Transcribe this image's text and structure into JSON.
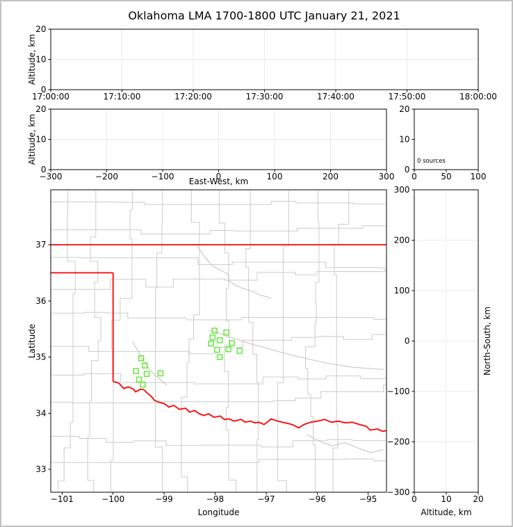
{
  "title": "Oklahoma LMA 1700-1800 UTC January 21, 2021",
  "colors": {
    "state_border": "#ff0000",
    "station_marker": "#65e83d",
    "county_line": "#cbcbcb",
    "river_line": "#c9c9c9",
    "gridline": "#ebebeb",
    "axis": "#000000"
  },
  "chart_data": {
    "type": "scatter",
    "title": "Oklahoma LMA 1700-1800 UTC January 21, 2021",
    "source_count_note": "0 sources",
    "panels": [
      {
        "id": "time_height",
        "description": "VHF source altitude versus time (no sources plotted)",
        "xlim": [
          0,
          3600
        ],
        "ylim": [
          0,
          20
        ],
        "xticks": [
          {
            "v": 0,
            "label": "17:00:00"
          },
          {
            "v": 600,
            "label": "17:10:00"
          },
          {
            "v": 1200,
            "label": "17:20:00"
          },
          {
            "v": 1800,
            "label": "17:30:00"
          },
          {
            "v": 2400,
            "label": "17:40:00"
          },
          {
            "v": 3000,
            "label": "17:50:00"
          },
          {
            "v": 3600,
            "label": "18:00:00"
          }
        ],
        "yticks": [
          {
            "v": 0,
            "label": "0"
          },
          {
            "v": 10,
            "label": "10"
          },
          {
            "v": 20,
            "label": "20"
          }
        ],
        "xlabel": "",
        "ylabel": "Altitude, km",
        "grid": true,
        "points": []
      },
      {
        "id": "ew_height",
        "description": "VHF source altitude versus east-west distance (no sources plotted)",
        "xlim": [
          -300,
          300
        ],
        "ylim": [
          0,
          20
        ],
        "xticks": [
          {
            "v": -300,
            "label": "−300"
          },
          {
            "v": -200,
            "label": "−200"
          },
          {
            "v": -100,
            "label": "−100"
          },
          {
            "v": 0,
            "label": "0"
          },
          {
            "v": 100,
            "label": "100"
          },
          {
            "v": 200,
            "label": "200"
          },
          {
            "v": 300,
            "label": "300"
          }
        ],
        "yticks": [
          {
            "v": 0,
            "label": "0"
          },
          {
            "v": 10,
            "label": "10"
          },
          {
            "v": 20,
            "label": "20"
          }
        ],
        "xlabel": "East-West, km",
        "ylabel": "Altitude, km",
        "grid": true,
        "points": []
      },
      {
        "id": "alt_hist",
        "description": "Source count versus altitude histogram",
        "xlim": [
          0,
          100
        ],
        "ylim": [
          0,
          20
        ],
        "xticks": [
          {
            "v": 0,
            "label": "0"
          },
          {
            "v": 50,
            "label": "50"
          },
          {
            "v": 100,
            "label": "100"
          }
        ],
        "yticks": [
          {
            "v": 0,
            "label": "0"
          },
          {
            "v": 10,
            "label": "10"
          },
          {
            "v": 20,
            "label": "20"
          }
        ],
        "xlabel": "",
        "ylabel": "",
        "annotation": "0 sources",
        "grid": false,
        "points": []
      },
      {
        "id": "plan_map",
        "description": "Plan view map of Oklahoma with LMA station locations (green squares)",
        "xlim": [
          -101.222,
          -94.641
        ],
        "ylim": [
          32.594,
          37.978
        ],
        "xticks": [
          {
            "v": -101,
            "label": "−101"
          },
          {
            "v": -100,
            "label": "−100"
          },
          {
            "v": -99,
            "label": "−99"
          },
          {
            "v": -98,
            "label": "−98"
          },
          {
            "v": -97,
            "label": "−97"
          },
          {
            "v": -96,
            "label": "−96"
          },
          {
            "v": -95,
            "label": "−95"
          }
        ],
        "yticks": [
          {
            "v": 33,
            "label": "33"
          },
          {
            "v": 34,
            "label": "34"
          },
          {
            "v": 35,
            "label": "35"
          },
          {
            "v": 36,
            "label": "36"
          },
          {
            "v": 37,
            "label": "37"
          }
        ],
        "xlabel": "Longitude",
        "ylabel": "Latitude",
        "grid": false,
        "stations": [
          [
            -99.45,
            34.98
          ],
          [
            -99.38,
            34.85
          ],
          [
            -99.55,
            34.75
          ],
          [
            -99.34,
            34.7
          ],
          [
            -99.07,
            34.71
          ],
          [
            -99.49,
            34.6
          ],
          [
            -99.42,
            34.51
          ],
          [
            -98.01,
            35.47
          ],
          [
            -97.78,
            35.44
          ],
          [
            -98.05,
            35.35
          ],
          [
            -97.91,
            35.3
          ],
          [
            -98.08,
            35.24
          ],
          [
            -97.67,
            35.25
          ],
          [
            -97.96,
            35.13
          ],
          [
            -97.74,
            35.14
          ],
          [
            -97.52,
            35.11
          ],
          [
            -97.91,
            35.0
          ]
        ],
        "state_borders": [
          {
            "name": "kansas-oklahoma-border",
            "points": [
              [
                -101.222,
                37.0
              ],
              [
                -94.641,
                37.0
              ]
            ]
          },
          {
            "name": "panhandle-south-border",
            "points": [
              [
                -101.222,
                36.5
              ],
              [
                -100.0,
                36.5
              ]
            ]
          },
          {
            "name": "texas-border-meridian",
            "points": [
              [
                -100.0,
                36.5
              ],
              [
                -100.0,
                34.563
              ]
            ]
          },
          {
            "name": "red-river-border",
            "points": [
              [
                -100.0,
                34.563
              ],
              [
                -99.89,
                34.54
              ],
              [
                -99.79,
                34.44
              ],
              [
                -99.7,
                34.47
              ],
              [
                -99.6,
                34.43
              ],
              [
                -99.56,
                34.38
              ],
              [
                -99.46,
                34.43
              ],
              [
                -99.4,
                34.42
              ],
              [
                -99.33,
                34.36
              ],
              [
                -99.25,
                34.3
              ],
              [
                -99.19,
                34.23
              ],
              [
                -99.11,
                34.2
              ],
              [
                -98.99,
                34.17
              ],
              [
                -98.91,
                34.11
              ],
              [
                -98.81,
                34.14
              ],
              [
                -98.7,
                34.07
              ],
              [
                -98.58,
                34.09
              ],
              [
                -98.5,
                34.02
              ],
              [
                -98.4,
                34.05
              ],
              [
                -98.31,
                33.99
              ],
              [
                -98.22,
                33.96
              ],
              [
                -98.13,
                33.99
              ],
              [
                -98.02,
                33.93
              ],
              [
                -97.9,
                33.95
              ],
              [
                -97.82,
                33.89
              ],
              [
                -97.72,
                33.9
              ],
              [
                -97.63,
                33.86
              ],
              [
                -97.49,
                33.89
              ],
              [
                -97.41,
                33.84
              ],
              [
                -97.31,
                33.86
              ],
              [
                -97.22,
                33.83
              ],
              [
                -97.14,
                33.84
              ],
              [
                -97.04,
                33.8
              ],
              [
                -96.9,
                33.9
              ],
              [
                -96.77,
                33.86
              ],
              [
                -96.63,
                33.83
              ],
              [
                -96.49,
                33.8
              ],
              [
                -96.36,
                33.74
              ],
              [
                -96.26,
                33.8
              ],
              [
                -96.13,
                33.84
              ],
              [
                -95.99,
                33.86
              ],
              [
                -95.85,
                33.89
              ],
              [
                -95.72,
                33.84
              ],
              [
                -95.58,
                33.86
              ],
              [
                -95.45,
                33.83
              ],
              [
                -95.31,
                33.84
              ],
              [
                -95.17,
                33.8
              ],
              [
                -95.04,
                33.77
              ],
              [
                -94.96,
                33.7
              ],
              [
                -94.82,
                33.72
              ],
              [
                -94.72,
                33.68
              ],
              [
                -94.641,
                33.69
              ]
            ]
          }
        ],
        "rivers": [
          [
            [
              -98.35,
              36.97
            ],
            [
              -98.2,
              36.78
            ],
            [
              -98.05,
              36.62
            ],
            [
              -97.9,
              36.55
            ],
            [
              -97.75,
              36.48
            ],
            [
              -97.72,
              36.35
            ],
            [
              -97.6,
              36.28
            ],
            [
              -97.45,
              36.22
            ],
            [
              -97.3,
              36.18
            ],
            [
              -97.1,
              36.1
            ],
            [
              -96.9,
              36.05
            ]
          ],
          [
            [
              -99.62,
              35.28
            ],
            [
              -99.52,
              35.12
            ],
            [
              -99.45,
              35.0
            ],
            [
              -99.38,
              34.9
            ],
            [
              -99.28,
              34.78
            ],
            [
              -99.18,
              34.68
            ],
            [
              -99.05,
              34.58
            ],
            [
              -98.95,
              34.5
            ]
          ],
          [
            [
              -98.12,
              35.48
            ],
            [
              -97.95,
              35.44
            ],
            [
              -97.8,
              35.38
            ],
            [
              -97.62,
              35.33
            ],
            [
              -97.45,
              35.28
            ],
            [
              -97.25,
              35.22
            ],
            [
              -97.05,
              35.18
            ],
            [
              -96.85,
              35.12
            ],
            [
              -96.6,
              35.06
            ],
            [
              -96.35,
              35.0
            ],
            [
              -96.1,
              34.95
            ],
            [
              -95.85,
              34.9
            ],
            [
              -95.6,
              34.86
            ],
            [
              -95.3,
              34.82
            ],
            [
              -95.0,
              34.8
            ],
            [
              -94.7,
              34.78
            ]
          ],
          [
            [
              -96.2,
              33.62
            ],
            [
              -95.95,
              33.5
            ],
            [
              -95.7,
              33.42
            ],
            [
              -95.45,
              33.48
            ],
            [
              -95.2,
              33.38
            ],
            [
              -94.95,
              33.3
            ],
            [
              -94.7,
              33.35
            ]
          ]
        ],
        "points": []
      },
      {
        "id": "ns_height",
        "description": "North-south distance versus altitude (no sources plotted)",
        "xlim": [
          0,
          20
        ],
        "ylim": [
          -300,
          300
        ],
        "xticks": [
          {
            "v": 0,
            "label": "0"
          },
          {
            "v": 10,
            "label": "10"
          },
          {
            "v": 20,
            "label": "20"
          }
        ],
        "yticks": [
          {
            "v": -300,
            "label": "−300"
          },
          {
            "v": -200,
            "label": "−200"
          },
          {
            "v": -100,
            "label": "−100"
          },
          {
            "v": 0,
            "label": "0"
          },
          {
            "v": 100,
            "label": "100"
          },
          {
            "v": 200,
            "label": "200"
          },
          {
            "v": 300,
            "label": "300"
          }
        ],
        "xlabel": "Altitude, km",
        "ylabel": "North-South, km",
        "ylabel_side": "right",
        "grid": true,
        "points": []
      }
    ]
  }
}
